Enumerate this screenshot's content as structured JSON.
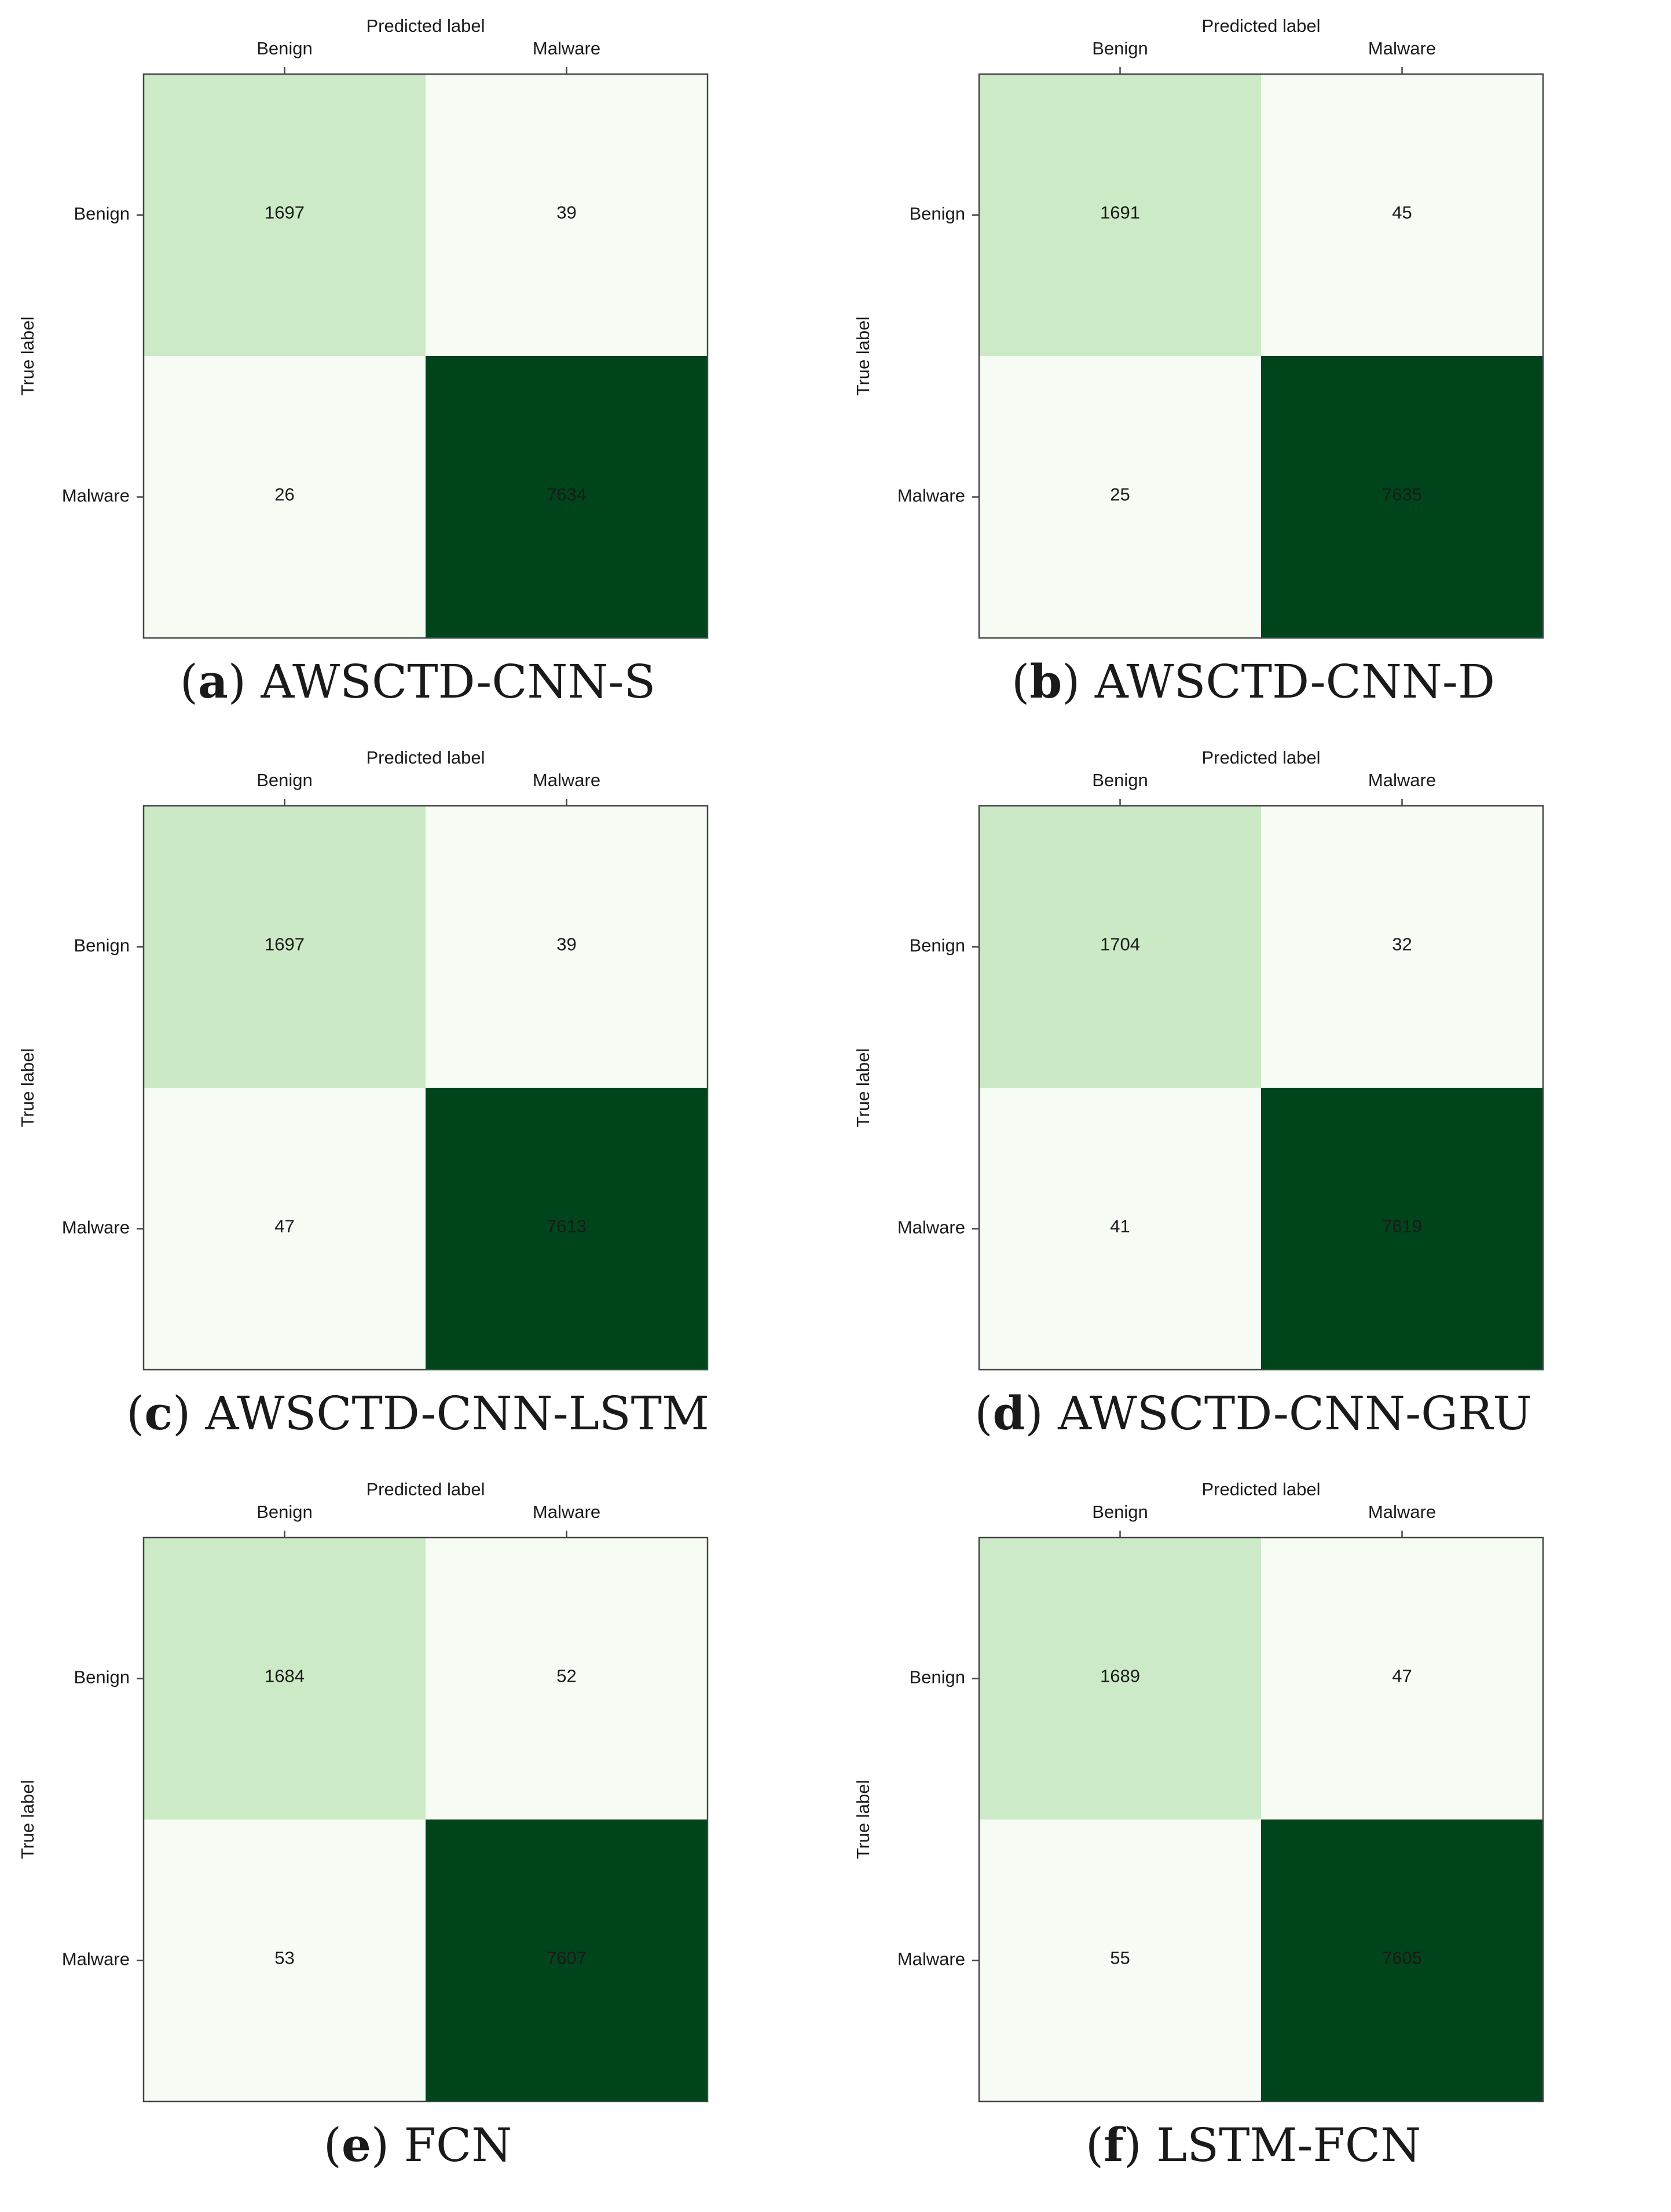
{
  "colors": {
    "low": "#f7fcf5",
    "mid": "#cdeac7",
    "high": "#00441b",
    "text_dark": "#1a1a1a",
    "text_light": "#ffffff"
  },
  "chart_data": [
    {
      "type": "heatmap",
      "letter": "a",
      "caption": "AWSCTD-CNN-S",
      "xlabel": "Predicted label",
      "ylabel": "True label",
      "x_categories": [
        "Benign",
        "Malware"
      ],
      "y_categories": [
        "Benign",
        "Malware"
      ],
      "matrix": [
        [
          1697,
          39
        ],
        [
          26,
          7634
        ]
      ]
    },
    {
      "type": "heatmap",
      "letter": "b",
      "caption": "AWSCTD-CNN-D",
      "xlabel": "Predicted label",
      "ylabel": "True label",
      "x_categories": [
        "Benign",
        "Malware"
      ],
      "y_categories": [
        "Benign",
        "Malware"
      ],
      "matrix": [
        [
          1691,
          45
        ],
        [
          25,
          7635
        ]
      ]
    },
    {
      "type": "heatmap",
      "letter": "c",
      "caption": "AWSCTD-CNN-LSTM",
      "xlabel": "Predicted label",
      "ylabel": "True label",
      "x_categories": [
        "Benign",
        "Malware"
      ],
      "y_categories": [
        "Benign",
        "Malware"
      ],
      "matrix": [
        [
          1697,
          39
        ],
        [
          47,
          7613
        ]
      ]
    },
    {
      "type": "heatmap",
      "letter": "d",
      "caption": "AWSCTD-CNN-GRU",
      "xlabel": "Predicted label",
      "ylabel": "True label",
      "x_categories": [
        "Benign",
        "Malware"
      ],
      "y_categories": [
        "Benign",
        "Malware"
      ],
      "matrix": [
        [
          1704,
          32
        ],
        [
          41,
          7619
        ]
      ]
    },
    {
      "type": "heatmap",
      "letter": "e",
      "caption": "FCN",
      "xlabel": "Predicted label",
      "ylabel": "True label",
      "x_categories": [
        "Benign",
        "Malware"
      ],
      "y_categories": [
        "Benign",
        "Malware"
      ],
      "matrix": [
        [
          1684,
          52
        ],
        [
          53,
          7607
        ]
      ]
    },
    {
      "type": "heatmap",
      "letter": "f",
      "caption": "LSTM-FCN",
      "xlabel": "Predicted label",
      "ylabel": "True label",
      "x_categories": [
        "Benign",
        "Malware"
      ],
      "y_categories": [
        "Benign",
        "Malware"
      ],
      "matrix": [
        [
          1689,
          47
        ],
        [
          55,
          7605
        ]
      ]
    }
  ]
}
